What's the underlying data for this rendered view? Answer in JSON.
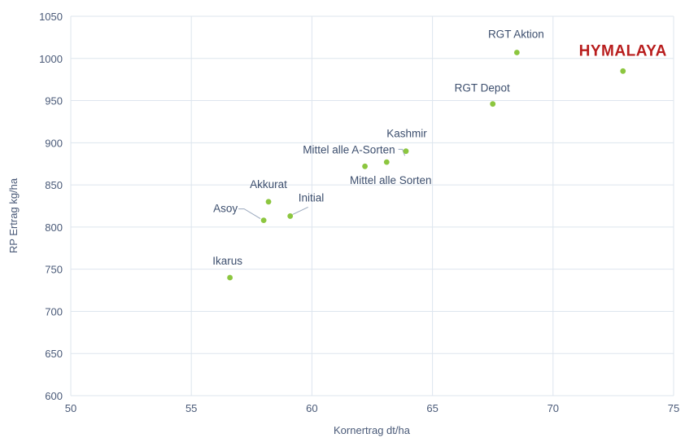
{
  "chart_data": {
    "type": "scatter",
    "title": "",
    "xlabel": "Kornertrag dt/ha",
    "ylabel": "RP Ertrag kg/ha",
    "xlim": [
      50,
      75
    ],
    "ylim": [
      600,
      1050
    ],
    "xticks": [
      50,
      55,
      60,
      65,
      70,
      75
    ],
    "yticks": [
      600,
      650,
      700,
      750,
      800,
      850,
      900,
      950,
      1000,
      1050
    ],
    "grid": true,
    "legend": "none",
    "point_color": "#8cc63f",
    "highlight_color": "#b81d1d",
    "points": [
      {
        "label": "Ikarus",
        "x": 56.6,
        "y": 740
      },
      {
        "label": "Asoy",
        "x": 58.0,
        "y": 808
      },
      {
        "label": "Akkurat",
        "x": 58.2,
        "y": 830
      },
      {
        "label": "Initial",
        "x": 59.1,
        "y": 813
      },
      {
        "label": "Mittel alle A-Sorten",
        "x": 62.2,
        "y": 872
      },
      {
        "label": "Mittel alle Sorten",
        "x": 63.1,
        "y": 877
      },
      {
        "label": "Kashmir",
        "x": 63.9,
        "y": 890
      },
      {
        "label": "RGT Depot",
        "x": 67.5,
        "y": 946
      },
      {
        "label": "RGT Aktion",
        "x": 68.5,
        "y": 1007
      },
      {
        "label": "HYMALAYA",
        "x": 72.9,
        "y": 985,
        "highlight": true
      }
    ]
  }
}
